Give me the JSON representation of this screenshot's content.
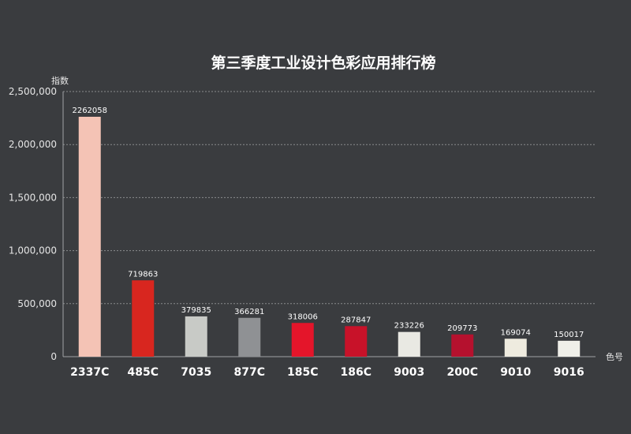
{
  "chart_data": {
    "type": "bar",
    "title": "第三季度工业设计色彩应用排行榜",
    "ylabel": "指数",
    "xlabel": "色号",
    "ylim": [
      0,
      2500000
    ],
    "yticks": [
      0,
      500000,
      1000000,
      1500000,
      2000000,
      2500000
    ],
    "ytick_labels": [
      "0",
      "500,000",
      "1,000,000",
      "1,500,000",
      "2,000,000",
      "2,500,000"
    ],
    "grid": true,
    "categories": [
      "2337C",
      "485C",
      "7035",
      "877C",
      "185C",
      "186C",
      "9003",
      "200C",
      "9010",
      "9016"
    ],
    "values": [
      2262058,
      719863,
      379835,
      366281,
      318006,
      287847,
      233226,
      209773,
      169074,
      150017
    ],
    "data_labels": [
      "2262058",
      "719863",
      "379835",
      "366281",
      "318006",
      "287847",
      "233226",
      "209773",
      "169074",
      "150017"
    ],
    "colors": [
      "#f4c3b5",
      "#d8261f",
      "#c8cac6",
      "#8f9194",
      "#e4152a",
      "#c81229",
      "#e9e9e3",
      "#b5112e",
      "#eeebdf",
      "#efefe9"
    ]
  }
}
